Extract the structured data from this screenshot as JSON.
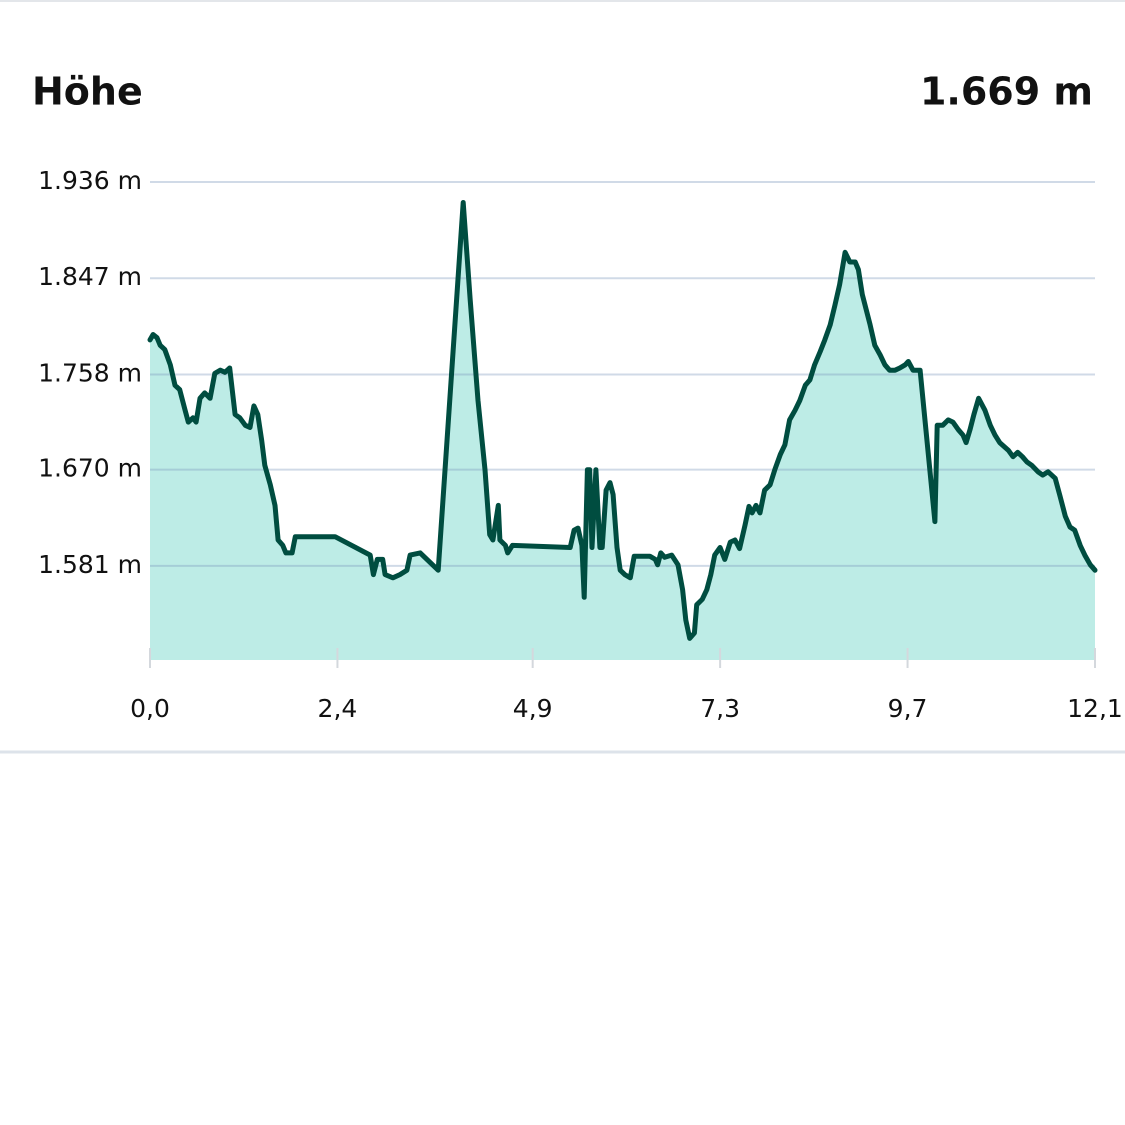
{
  "chart_data": {
    "type": "area",
    "title": "Höhe",
    "annotations": [
      "1.669 m"
    ],
    "color": "#004d40",
    "fill": "#bdece6",
    "grid": true,
    "xlim": [
      0,
      12.1
    ],
    "ylim": [
      1494,
      1936
    ],
    "xticks": [
      {
        "value": 0,
        "label": "0,0"
      },
      {
        "value": 2.4,
        "label": "2,4"
      },
      {
        "value": 4.9,
        "label": "4,9"
      },
      {
        "value": 7.3,
        "label": "7,3"
      },
      {
        "value": 9.7,
        "label": "9,7"
      },
      {
        "value": 12.1,
        "label": "12,1"
      }
    ],
    "yticks": [
      {
        "value": 1581,
        "label": "1.581 m"
      },
      {
        "value": 1670,
        "label": "1.670 m"
      },
      {
        "value": 1758,
        "label": "1.758 m"
      },
      {
        "value": 1847,
        "label": "1.847 m"
      },
      {
        "value": 1936,
        "label": "1.936 m"
      }
    ],
    "x": [
      0,
      0.04,
      0.09,
      0.13,
      0.19,
      0.26,
      0.32,
      0.38,
      0.45,
      0.49,
      0.55,
      0.59,
      0.64,
      0.7,
      0.77,
      0.83,
      0.9,
      0.96,
      1.02,
      1.09,
      1.15,
      1.22,
      1.28,
      1.33,
      1.38,
      1.43,
      1.47,
      1.54,
      1.6,
      1.64,
      1.7,
      1.74,
      1.82,
      1.86,
      2.37,
      2.82,
      2.86,
      2.91,
      2.98,
      3.01,
      3.11,
      3.2,
      3.29,
      3.33,
      3.46,
      3.69,
      4.01,
      4.1,
      4.2,
      4.29,
      4.35,
      4.39,
      4.46,
      4.48,
      4.55,
      4.58,
      4.64,
      4.99,
      5.38,
      5.43,
      5.48,
      5.53,
      5.56,
      5.6,
      5.63,
      5.66,
      5.71,
      5.76,
      5.79,
      5.84,
      5.89,
      5.93,
      5.98,
      6.02,
      6.08,
      6.15,
      6.2,
      6.27,
      6.4,
      6.47,
      6.5,
      6.54,
      6.59,
      6.68,
      6.76,
      6.82,
      6.86,
      6.91,
      6.97,
      7.0,
      7.07,
      7.13,
      7.18,
      7.23,
      7.3,
      7.36,
      7.43,
      7.49,
      7.55,
      7.62,
      7.67,
      7.71,
      7.76,
      7.81,
      7.87,
      7.94,
      8.0,
      8.07,
      8.13,
      8.19,
      8.26,
      8.32,
      8.39,
      8.45,
      8.51,
      8.58,
      8.64,
      8.71,
      8.77,
      8.83,
      8.9,
      8.96,
      9.03,
      9.07,
      9.12,
      9.17,
      9.22,
      9.28,
      9.35,
      9.41,
      9.47,
      9.54,
      9.6,
      9.67,
      9.71,
      9.77,
      9.86,
      10.05,
      10.08,
      10.15,
      10.22,
      10.28,
      10.35,
      10.41,
      10.45,
      10.5,
      10.55,
      10.61,
      10.69,
      10.76,
      10.82,
      10.88,
      10.99,
      11.05,
      11.11,
      11.17,
      11.23,
      11.29,
      11.37,
      11.43,
      11.5,
      11.59,
      11.65,
      11.72,
      11.78,
      11.84,
      11.91,
      11.97,
      12.04,
      12.1
    ],
    "values": [
      1790,
      1795,
      1792,
      1785,
      1781,
      1767,
      1748,
      1744,
      1725,
      1714,
      1718,
      1714,
      1736,
      1741,
      1736,
      1759,
      1762,
      1760,
      1764,
      1721,
      1718,
      1711,
      1709,
      1729,
      1721,
      1697,
      1674,
      1656,
      1637,
      1605,
      1600,
      1593,
      1593,
      1608,
      1608,
      1591,
      1573,
      1587,
      1587,
      1573,
      1570,
      1573,
      1577,
      1591,
      1593,
      1577,
      1917,
      1827,
      1734,
      1670,
      1610,
      1605,
      1637,
      1605,
      1600,
      1593,
      1600,
      1599,
      1598,
      1614,
      1616,
      1600,
      1552,
      1670,
      1670,
      1598,
      1670,
      1598,
      1598,
      1651,
      1658,
      1647,
      1598,
      1577,
      1573,
      1570,
      1590,
      1590,
      1590,
      1587,
      1582,
      1593,
      1589,
      1591,
      1582,
      1559,
      1531,
      1514,
      1519,
      1545,
      1550,
      1559,
      1573,
      1591,
      1598,
      1587,
      1603,
      1605,
      1597,
      1619,
      1636,
      1630,
      1637,
      1630,
      1651,
      1656,
      1670,
      1684,
      1693,
      1716,
      1725,
      1734,
      1748,
      1753,
      1767,
      1779,
      1790,
      1804,
      1822,
      1841,
      1871,
      1862,
      1862,
      1855,
      1832,
      1818,
      1804,
      1785,
      1776,
      1767,
      1762,
      1762,
      1764,
      1767,
      1770,
      1762,
      1762,
      1622,
      1711,
      1711,
      1716,
      1714,
      1707,
      1702,
      1695,
      1707,
      1721,
      1736,
      1725,
      1711,
      1702,
      1695,
      1688,
      1682,
      1686,
      1682,
      1677,
      1674,
      1668,
      1665,
      1668,
      1662,
      1646,
      1627,
      1617,
      1614,
      1600,
      1591,
      1582,
      1577
    ]
  }
}
